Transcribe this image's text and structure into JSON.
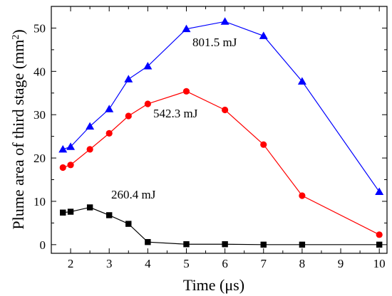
{
  "chart_data": {
    "type": "line",
    "xlabel": "Time (μs)",
    "ylabel": "Plume area of third stage (mm²)",
    "ylabel_main": "Plume area of third stage (mm",
    "ylabel_sup": "2",
    "ylabel_close": ")",
    "xlim": [
      1.5,
      10.2
    ],
    "ylim": [
      -2,
      55
    ],
    "xticks": [
      2,
      3,
      4,
      5,
      6,
      7,
      8,
      9,
      10
    ],
    "yticks": [
      0,
      10,
      20,
      30,
      40,
      50
    ],
    "x": [
      1.8,
      2,
      2.5,
      3,
      3.5,
      4,
      5,
      6,
      7,
      8,
      10
    ],
    "series": [
      {
        "name": "801.5 mJ",
        "color": "#0000ff",
        "marker": "triangle",
        "values": [
          22.0,
          22.6,
          27.3,
          31.3,
          38.2,
          41.2,
          49.8,
          51.5,
          48.2,
          37.7,
          12.2
        ]
      },
      {
        "name": "542.3 mJ",
        "color": "#ff0000",
        "marker": "circle",
        "values": [
          17.8,
          18.4,
          22.0,
          25.7,
          29.7,
          32.5,
          35.4,
          31.1,
          23.1,
          11.3,
          2.3
        ]
      },
      {
        "name": "260.4 mJ",
        "color": "#000000",
        "marker": "square",
        "values": [
          7.4,
          7.6,
          8.6,
          6.8,
          4.8,
          0.6,
          0.1,
          0.1,
          0.0,
          0.0,
          0.0
        ]
      }
    ]
  }
}
